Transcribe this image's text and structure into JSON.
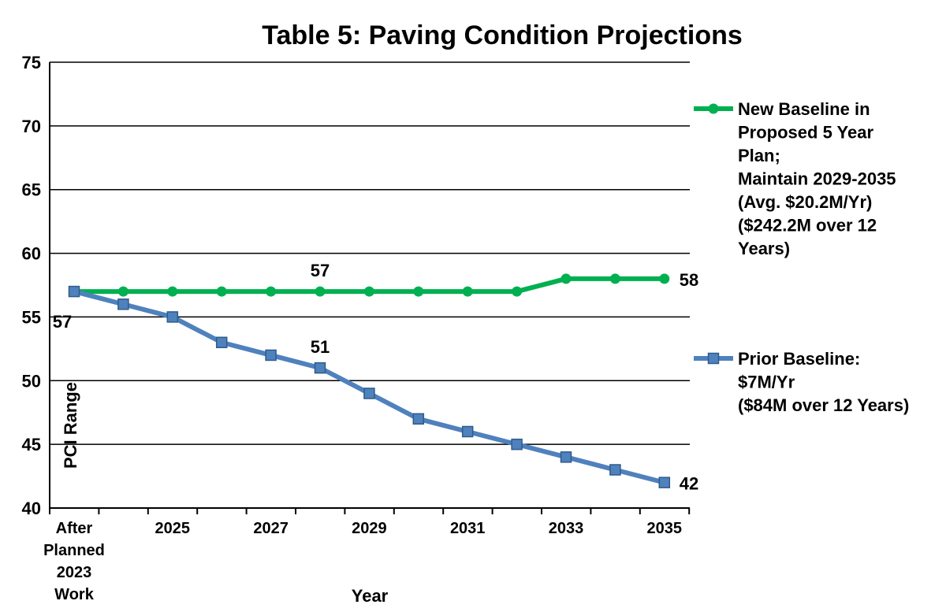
{
  "chart_data": {
    "type": "line",
    "title": "Table 5: Paving Condition Projections",
    "xlabel": "Year",
    "ylabel": "PCI Range",
    "ylim": [
      40,
      75
    ],
    "yticks": [
      40,
      45,
      50,
      55,
      60,
      65,
      70,
      75
    ],
    "grid": true,
    "legend_position": "right",
    "categories": [
      "After Planned 2023 Work",
      "2024",
      "2025",
      "2026",
      "2027",
      "2028",
      "2029",
      "2030",
      "2031",
      "2032",
      "2033",
      "2034",
      "2035"
    ],
    "category_tick_labels": [
      [
        "After",
        "Planned",
        "2023",
        "Work"
      ],
      [],
      [
        "2025"
      ],
      [],
      [
        "2027"
      ],
      [],
      [
        "2029"
      ],
      [],
      [
        "2031"
      ],
      [],
      [
        "2033"
      ],
      [],
      [
        "2035"
      ]
    ],
    "series": [
      {
        "name": "New Baseline in Proposed 5 Year Plan; Maintain 2029-2035 (Avg. $20.2M/Yr) ($242.2M over 12 Years)",
        "legend_lines": [
          "New Baseline in",
          "Proposed 5 Year",
          "Plan;",
          "Maintain 2029-2035",
          "(Avg. $20.2M/Yr)",
          "($242.2M over 12",
          "Years)"
        ],
        "color": "#00B050",
        "marker": "circle",
        "values": [
          57,
          57,
          57,
          57,
          57,
          57,
          57,
          57,
          57,
          57,
          58,
          58,
          58
        ]
      },
      {
        "name": "Prior Baseline: $7M/Yr ($84M over 12 Years)",
        "legend_lines": [
          "Prior Baseline:",
          "$7M/Yr",
          "($84M over 12 Years)"
        ],
        "color": "#4F81BD",
        "marker": "square",
        "values": [
          57,
          56,
          55,
          53,
          52,
          51,
          49,
          47,
          46,
          45,
          44,
          43,
          42
        ]
      }
    ],
    "annotations": [
      {
        "text": "57",
        "series": 0,
        "index": 5,
        "placement": "above"
      },
      {
        "text": "58",
        "series": 0,
        "index": 12,
        "placement": "right"
      },
      {
        "text": "57",
        "series": 1,
        "index": 0,
        "placement": "below"
      },
      {
        "text": "51",
        "series": 1,
        "index": 5,
        "placement": "above"
      },
      {
        "text": "42",
        "series": 1,
        "index": 12,
        "placement": "right"
      }
    ]
  }
}
